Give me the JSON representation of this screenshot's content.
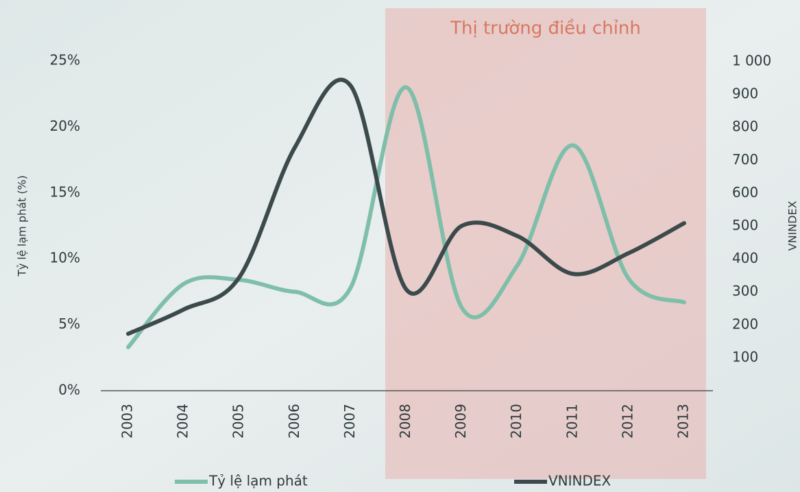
{
  "chart_data": {
    "type": "line",
    "annotation": "Thị trường điều chỉnh",
    "categories": [
      "2003",
      "2004",
      "2005",
      "2006",
      "2007",
      "2008",
      "2009",
      "2010",
      "2011",
      "2012",
      "2013"
    ],
    "series": [
      {
        "name": "Tỷ lệ lạm phát",
        "color": "#7fbfaa",
        "values": [
          3.3,
          8.1,
          8.4,
          7.5,
          7.8,
          23.0,
          6.3,
          9.5,
          18.6,
          8.5,
          6.7
        ]
      },
      {
        "name": "VNINDEX",
        "color": "#3d4a4c",
        "axis": "y2",
        "values": [
          173,
          247,
          345,
          740,
          927,
          308,
          501,
          470,
          355,
          418,
          509
        ]
      }
    ],
    "ylabel": "Tỷ lệ lạm phát (%)",
    "y2label": "VNINDEX",
    "ylim": [
      0,
      25
    ],
    "yticks": [
      {
        "value": 0,
        "label": "0%"
      },
      {
        "value": 5,
        "label": "5%"
      },
      {
        "value": 10,
        "label": "10%"
      },
      {
        "value": 15,
        "label": "15%"
      },
      {
        "value": 20,
        "label": "20%"
      },
      {
        "value": 25,
        "label": "25%"
      }
    ],
    "y2lim": [
      0,
      1000
    ],
    "y2ticks": [
      100,
      200,
      300,
      400,
      500,
      600,
      700,
      800,
      900,
      {
        "value": 1000,
        "label": "1 000"
      }
    ],
    "legend": "bottom"
  }
}
